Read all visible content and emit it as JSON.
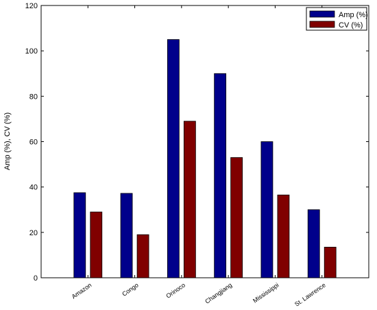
{
  "chart_data": {
    "type": "bar",
    "categories": [
      "Amazon",
      "Congo",
      "Orinoco",
      "Changjiang",
      "Mississippi",
      "St. Lawrence"
    ],
    "series": [
      {
        "name": "Amp (%)",
        "values": [
          37.5,
          37.2,
          105,
          90,
          60,
          30
        ],
        "color": "#00008b"
      },
      {
        "name": "CV (%)",
        "values": [
          29,
          19,
          69,
          53,
          36.5,
          13.5
        ],
        "color": "#800000"
      }
    ],
    "title": "",
    "xlabel": "",
    "ylabel": "Amp (%), CV (%)",
    "ylim": [
      0,
      120
    ],
    "yticks": [
      0,
      20,
      40,
      60,
      80,
      100,
      120
    ],
    "grid": false,
    "legend_position": "top-right"
  }
}
